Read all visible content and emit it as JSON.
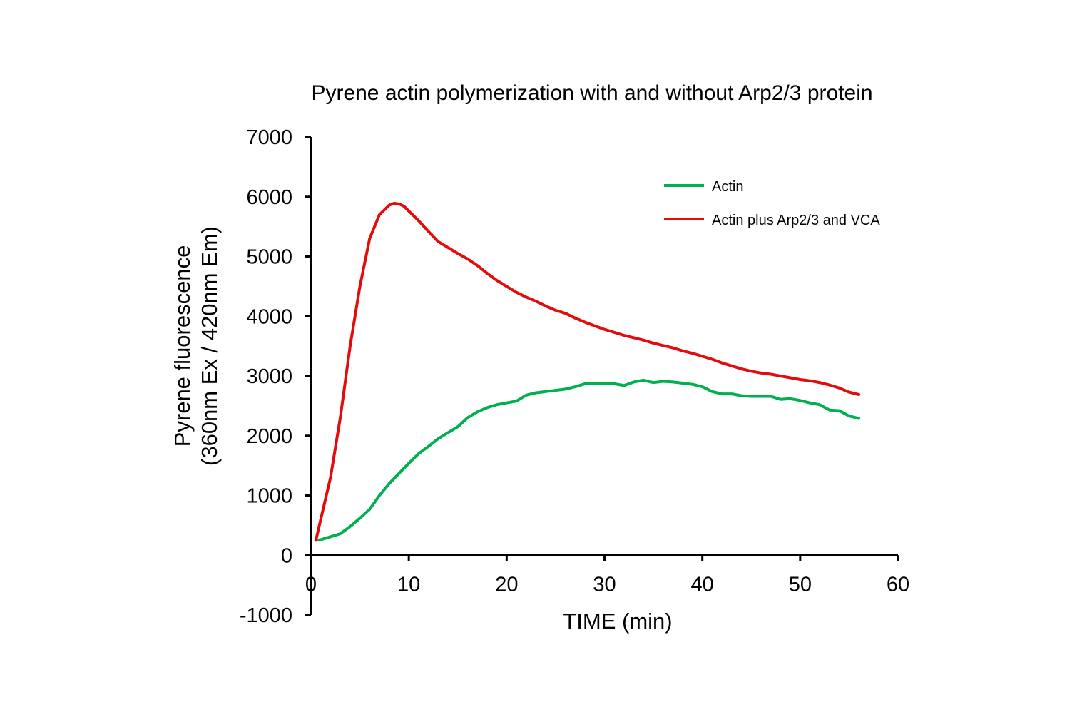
{
  "chart_data": {
    "type": "line",
    "title": "Pyrene actin polymerization with and without Arp2/3 protein",
    "xlabel": "TIME (min)",
    "ylabel": [
      "Pyrene fluorescence",
      "(360nm Ex / 420nm Em)"
    ],
    "xlim": [
      0,
      60
    ],
    "ylim": [
      -1000,
      7000
    ],
    "x_ticks": [
      0,
      10,
      20,
      30,
      40,
      50,
      60
    ],
    "y_ticks": [
      -1000,
      0,
      1000,
      2000,
      3000,
      4000,
      5000,
      6000,
      7000
    ],
    "grid": false,
    "legend_position": "top-right",
    "series": [
      {
        "name": "Actin",
        "color": "#00b050",
        "x": [
          0.5,
          1,
          2,
          3,
          4,
          5,
          6,
          7,
          8,
          9,
          10,
          11,
          12,
          13,
          14,
          15,
          16,
          17,
          18,
          19,
          20,
          21,
          22,
          23,
          24,
          25,
          26,
          27,
          28,
          29,
          30,
          31,
          32,
          33,
          34,
          35,
          36,
          37,
          38,
          39,
          40,
          41,
          42,
          43,
          44,
          45,
          46,
          47,
          48,
          49,
          50,
          51,
          52,
          53,
          54,
          55,
          56
        ],
        "y": [
          250,
          260,
          310,
          360,
          480,
          620,
          770,
          1000,
          1200,
          1370,
          1540,
          1700,
          1820,
          1950,
          2050,
          2150,
          2300,
          2400,
          2470,
          2520,
          2550,
          2580,
          2680,
          2720,
          2740,
          2760,
          2780,
          2820,
          2870,
          2880,
          2880,
          2870,
          2840,
          2900,
          2930,
          2890,
          2910,
          2900,
          2880,
          2860,
          2820,
          2740,
          2700,
          2700,
          2670,
          2660,
          2660,
          2660,
          2610,
          2620,
          2590,
          2550,
          2520,
          2430,
          2420,
          2330,
          2290
        ]
      },
      {
        "name": "Actin plus Arp2/3 and VCA",
        "color": "#e30b0b",
        "x": [
          0.5,
          1,
          2,
          3,
          4,
          5,
          6,
          7,
          8,
          8.5,
          9,
          9.5,
          10,
          11,
          12,
          13,
          14,
          15,
          16,
          17,
          18,
          19,
          20,
          21,
          22,
          23,
          24,
          25,
          26,
          27,
          28,
          29,
          30,
          31,
          32,
          33,
          34,
          35,
          36,
          37,
          38,
          39,
          40,
          41,
          42,
          43,
          44,
          45,
          46,
          47,
          48,
          49,
          50,
          51,
          52,
          53,
          54,
          55,
          56
        ],
        "y": [
          250,
          600,
          1300,
          2300,
          3500,
          4500,
          5300,
          5700,
          5860,
          5890,
          5880,
          5840,
          5760,
          5600,
          5420,
          5250,
          5150,
          5050,
          4960,
          4850,
          4720,
          4600,
          4500,
          4400,
          4320,
          4250,
          4170,
          4100,
          4050,
          3970,
          3900,
          3840,
          3780,
          3730,
          3680,
          3640,
          3600,
          3550,
          3510,
          3470,
          3420,
          3380,
          3330,
          3280,
          3220,
          3170,
          3120,
          3080,
          3050,
          3030,
          3000,
          2970,
          2940,
          2920,
          2890,
          2850,
          2800,
          2730,
          2690
        ]
      }
    ]
  }
}
